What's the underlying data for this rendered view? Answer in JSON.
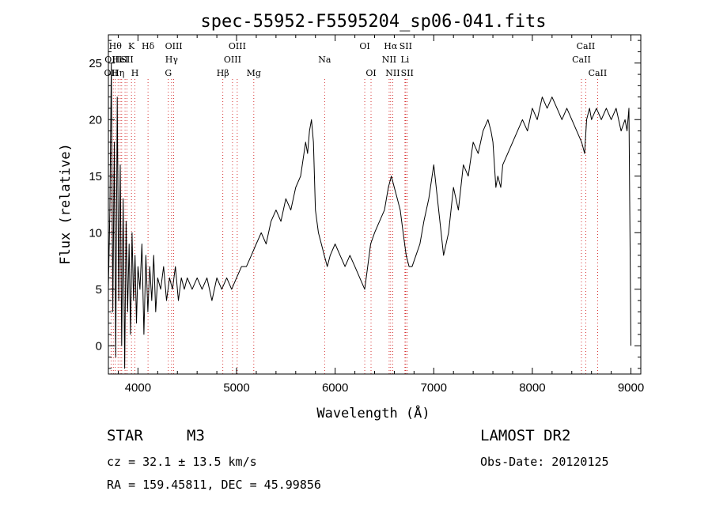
{
  "chart_data": {
    "type": "line",
    "title": "spec-55952-F5595204_sp06-041.fits",
    "xlabel": "Wavelength (Å)",
    "ylabel": "Flux (relative)",
    "xlim": [
      3700,
      9100
    ],
    "ylim": [
      -2.5,
      27.5
    ],
    "xticks": [
      4000,
      5000,
      6000,
      7000,
      8000,
      9000
    ],
    "yticks": [
      0,
      5,
      10,
      15,
      20,
      25
    ],
    "grid": false,
    "line_color": "#000000",
    "marker_color": "#cc0000",
    "series": [
      {
        "x": [
          3700,
          3715,
          3730,
          3745,
          3760,
          3775,
          3790,
          3805,
          3820,
          3835,
          3850,
          3865,
          3880,
          3895,
          3910,
          3925,
          3940,
          3955,
          3970,
          3985,
          4000,
          4020,
          4040,
          4060,
          4080,
          4100,
          4120,
          4140,
          4160,
          4180,
          4200,
          4230,
          4260,
          4290,
          4320,
          4350,
          4380,
          4410,
          4440,
          4470,
          4500,
          4550,
          4600,
          4650,
          4700,
          4750,
          4800,
          4850,
          4900,
          4950,
          5000,
          5050,
          5100,
          5150,
          5200,
          5250,
          5300,
          5350,
          5400,
          5450,
          5500,
          5550,
          5600,
          5650,
          5700,
          5720,
          5740,
          5760,
          5780,
          5800,
          5830,
          5860,
          5890,
          5920,
          5950,
          6000,
          6050,
          6100,
          6150,
          6200,
          6250,
          6300,
          6330,
          6360,
          6400,
          6450,
          6500,
          6540,
          6570,
          6600,
          6630,
          6660,
          6690,
          6720,
          6750,
          6780,
          6820,
          6860,
          6900,
          6950,
          7000,
          7050,
          7100,
          7150,
          7200,
          7250,
          7300,
          7350,
          7400,
          7450,
          7500,
          7550,
          7580,
          7600,
          7630,
          7650,
          7680,
          7700,
          7750,
          7800,
          7850,
          7900,
          7950,
          8000,
          8050,
          8100,
          8150,
          8200,
          8250,
          8300,
          8350,
          8400,
          8450,
          8500,
          8530,
          8550,
          8580,
          8600,
          8650,
          8700,
          8750,
          8800,
          8850,
          8900,
          8940,
          8960,
          8980,
          8990,
          9000
        ],
        "y": [
          5,
          12,
          25,
          3,
          18,
          -1,
          22,
          4,
          16,
          0,
          13,
          -2,
          11,
          3,
          9,
          1,
          10,
          4,
          8,
          2,
          7,
          5,
          9,
          1,
          8,
          3,
          7,
          4,
          8,
          3,
          6,
          5,
          7,
          4,
          6,
          5,
          7,
          4,
          6,
          5,
          6,
          5,
          6,
          5,
          6,
          4,
          6,
          5,
          6,
          5,
          6,
          7,
          7,
          8,
          9,
          10,
          9,
          11,
          12,
          11,
          13,
          12,
          14,
          15,
          18,
          17,
          19,
          20,
          18,
          12,
          10,
          9,
          8,
          7,
          8,
          9,
          8,
          7,
          8,
          7,
          6,
          5,
          7,
          9,
          10,
          11,
          12,
          14,
          15,
          14,
          13,
          12,
          10,
          8,
          7,
          7,
          8,
          9,
          11,
          13,
          16,
          12,
          8,
          10,
          14,
          12,
          16,
          15,
          18,
          17,
          19,
          20,
          19,
          18,
          14,
          15,
          14,
          16,
          17,
          18,
          19,
          20,
          19,
          21,
          20,
          22,
          21,
          22,
          21,
          20,
          21,
          20,
          19,
          18,
          17,
          20,
          21,
          20,
          21,
          20,
          21,
          20,
          21,
          19,
          20,
          19,
          21,
          10,
          0
        ]
      }
    ],
    "line_markers": [
      {
        "x": 3727,
        "label": "OII",
        "row": 2
      },
      {
        "x": 3750,
        "label": "OIII",
        "row": 1
      },
      {
        "x": 3770,
        "label": "Hθ",
        "row": 0
      },
      {
        "x": 3798,
        "label": "Hη",
        "row": 2
      },
      {
        "x": 3820,
        "label": "HeI",
        "row": 1
      },
      {
        "x": 3835,
        "label": "",
        "row": 0
      },
      {
        "x": 3869,
        "label": "",
        "row": 0
      },
      {
        "x": 3889,
        "label": "SII",
        "row": 1
      },
      {
        "x": 3934,
        "label": "K",
        "row": 0
      },
      {
        "x": 3969,
        "label": "H",
        "row": 2
      },
      {
        "x": 4102,
        "label": "Hδ",
        "row": 0
      },
      {
        "x": 4308,
        "label": "G",
        "row": 2
      },
      {
        "x": 4341,
        "label": "Hγ",
        "row": 1
      },
      {
        "x": 4363,
        "label": "OIII",
        "row": 0
      },
      {
        "x": 4861,
        "label": "Hβ",
        "row": 2
      },
      {
        "x": 4959,
        "label": "OIII",
        "row": 1
      },
      {
        "x": 5007,
        "label": "OIII",
        "row": 0
      },
      {
        "x": 5175,
        "label": "Mg",
        "row": 2
      },
      {
        "x": 5893,
        "label": "Na",
        "row": 1
      },
      {
        "x": 6300,
        "label": "OI",
        "row": 0
      },
      {
        "x": 6364,
        "label": "OI",
        "row": 2
      },
      {
        "x": 6548,
        "label": "NII",
        "row": 1
      },
      {
        "x": 6563,
        "label": "Hα",
        "row": 0
      },
      {
        "x": 6584,
        "label": "NII",
        "row": 2
      },
      {
        "x": 6708,
        "label": "Li",
        "row": 1
      },
      {
        "x": 6716,
        "label": "SII",
        "row": 0
      },
      {
        "x": 6731,
        "label": "SII",
        "row": 2
      },
      {
        "x": 8498,
        "label": "CaII",
        "row": 1
      },
      {
        "x": 8542,
        "label": "CaII",
        "row": 0
      },
      {
        "x": 8662,
        "label": "CaII",
        "row": 2
      }
    ]
  },
  "info": {
    "class": "STAR",
    "subclass": "M3",
    "survey": "LAMOST DR2",
    "cz": "cz = 32.1 ± 13.5 km/s",
    "obs_date": "Obs-Date: 20120125",
    "coords": "RA = 159.45811, DEC =  45.99856"
  }
}
